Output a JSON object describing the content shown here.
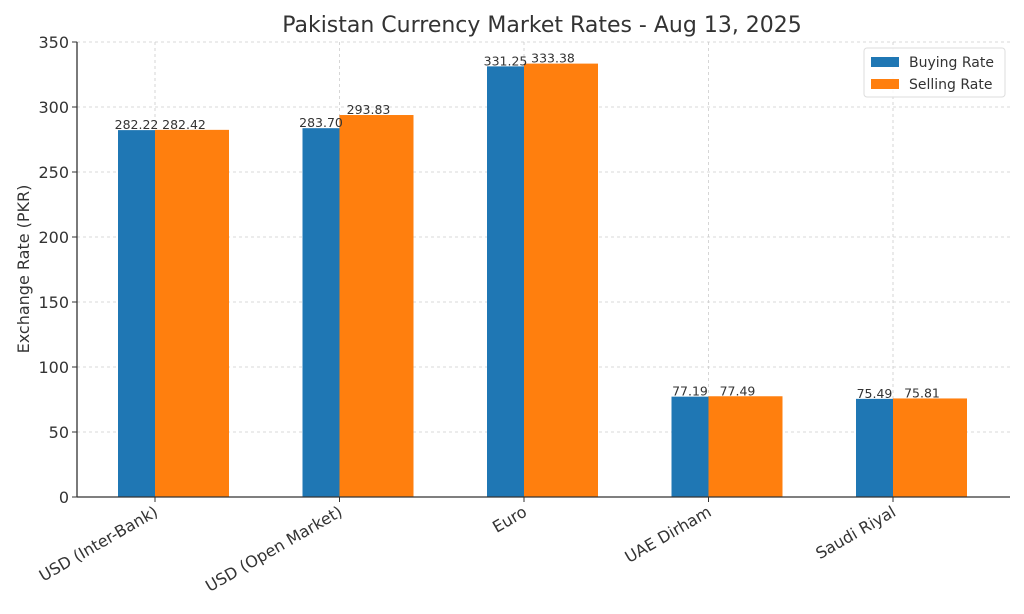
{
  "chart_data": {
    "type": "bar",
    "title": "Pakistan Currency Market Rates - Aug 13, 2025",
    "xlabel": "",
    "ylabel": "Exchange Rate (PKR)",
    "ylim": [
      0,
      350
    ],
    "yticks": [
      0,
      50,
      100,
      150,
      200,
      250,
      300,
      350
    ],
    "grid": true,
    "legend_position": "upper right",
    "categories": [
      "USD (Inter-Bank)",
      "USD (Open Market)",
      "Euro",
      "UAE Dirham",
      "Saudi Riyal"
    ],
    "series": [
      {
        "name": "Buying Rate",
        "color": "#1f77b4",
        "values": [
          282.22,
          283.7,
          331.25,
          77.19,
          75.49
        ]
      },
      {
        "name": "Selling Rate",
        "color": "#ff7f0e",
        "values": [
          282.42,
          293.83,
          333.38,
          77.49,
          75.81
        ]
      }
    ],
    "value_labels": {
      "Buying Rate": [
        "282.22",
        "283.70",
        "331.25",
        "77.19",
        "75.49"
      ],
      "Selling Rate": [
        "282.42",
        "293.83",
        "333.38",
        "77.49",
        "75.81"
      ]
    }
  }
}
